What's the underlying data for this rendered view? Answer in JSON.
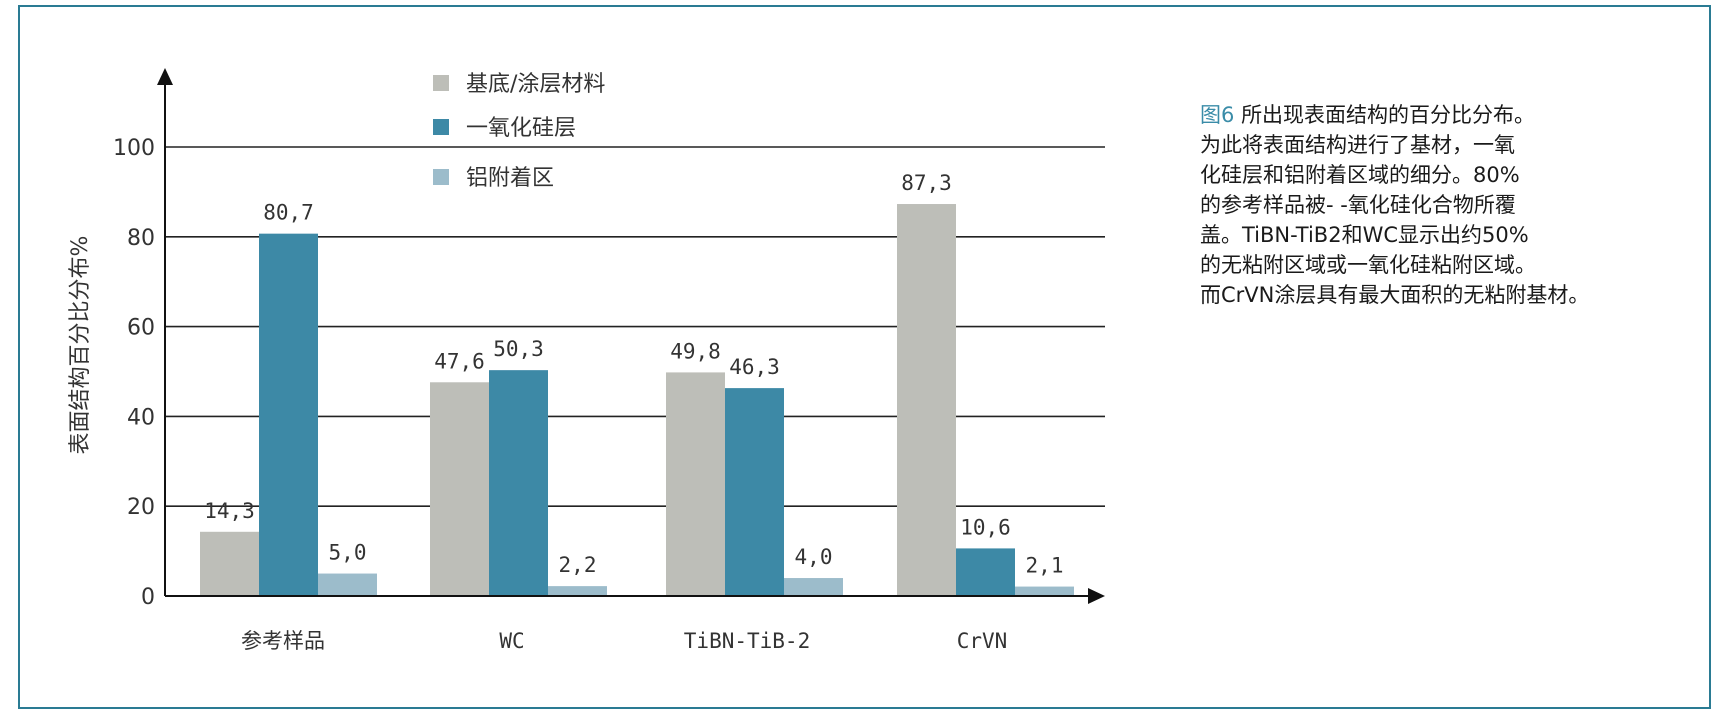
{
  "chart_data": {
    "type": "bar",
    "ylabel": "表面结构百分比分布%",
    "ylim": [
      0,
      100
    ],
    "yticks": [
      0,
      20,
      40,
      60,
      80,
      100
    ],
    "grid": true,
    "legend_placement": "top-center",
    "categories": [
      "参考样品",
      "WC",
      "TiBN-TiB-2",
      "CrVN"
    ],
    "series": [
      {
        "name": "基底/涂层材料",
        "color": "#bdbeb8",
        "values": [
          14.3,
          47.6,
          49.8,
          87.3
        ],
        "labels": [
          "14,3",
          "47,6",
          "49,8",
          "87,3"
        ]
      },
      {
        "name": "一氧化硅层",
        "color": "#3d89a6",
        "values": [
          80.7,
          50.3,
          46.3,
          10.6
        ],
        "labels": [
          "80,7",
          "50,3",
          "46,3",
          "10,6"
        ]
      },
      {
        "name": "铝附着区",
        "color": "#9cbccb",
        "values": [
          5.0,
          2.2,
          4.0,
          2.1
        ],
        "labels": [
          "5,0",
          "2,2",
          "4,0",
          "2,1"
        ]
      }
    ]
  },
  "caption": {
    "figure_label": "图6",
    "lines": [
      "所出现表面结构的百分比分布。",
      "为此将表面结构进行了基材，一氧",
      "化硅层和铝附着区域的细分。80%",
      "的参考样品被- -氧化硅化合物所覆",
      "盖。TiBN-TiB2和WC显示出约50%",
      "的无粘附区域或一氧化硅粘附区域。",
      "而CrVN涂层具有最大面积的无粘附基材。"
    ]
  }
}
